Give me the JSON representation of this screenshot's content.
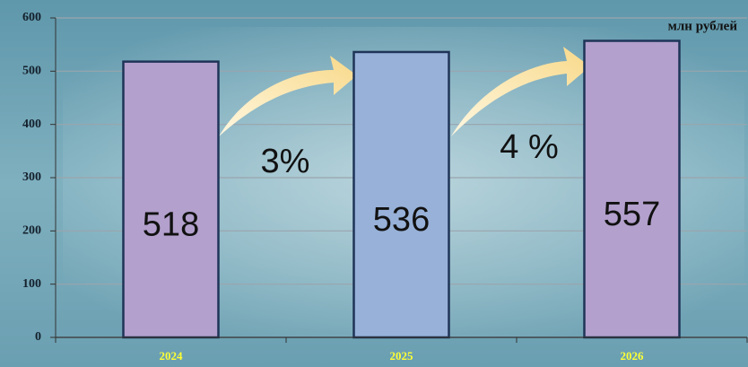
{
  "chart_data": {
    "type": "bar",
    "unit_label": "млн рублей",
    "categories": [
      "2024",
      "2025",
      "2026"
    ],
    "values": [
      518,
      536,
      557
    ],
    "colors": [
      "#b3a0cc",
      "#97b1d8",
      "#b3a0cc"
    ],
    "annotations": [
      "3%",
      "4 %"
    ],
    "ylim": [
      0,
      600
    ],
    "yticks": [
      0,
      100,
      200,
      300,
      400,
      500,
      600
    ],
    "grid": true
  }
}
